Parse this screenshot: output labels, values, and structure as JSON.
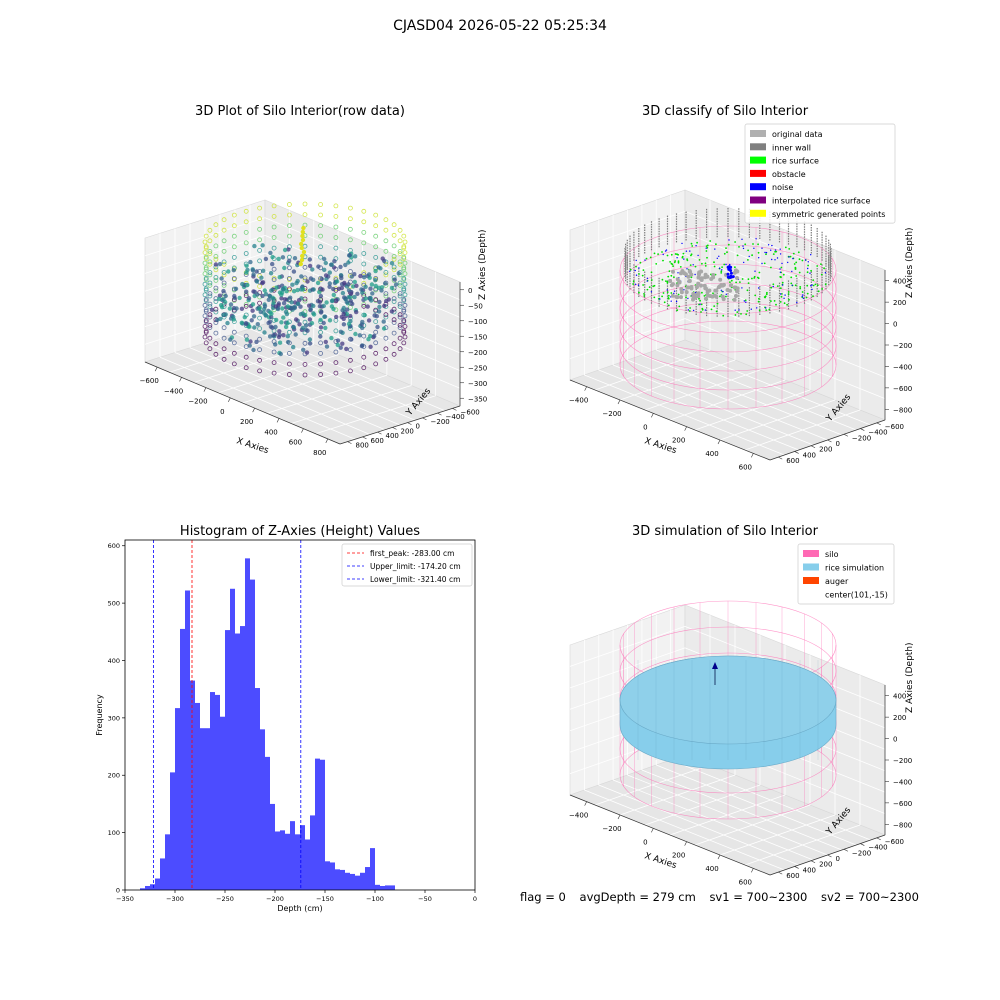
{
  "figure": {
    "suptitle": "CJASD04 2026-05-22 05:25:34",
    "footer": {
      "flag": "flag = 0",
      "avg": "avgDepth = 279 cm",
      "sv1": "sv1 = 700~2300",
      "sv2": "sv2 = 700~2300"
    }
  },
  "panels": {
    "raw": {
      "title": "3D Plot of Silo Interior(row data)",
      "xlabel": "X Axies",
      "ylabel": "Y Axies",
      "zlabel": "Z Axies (Depth)",
      "xticks": [
        "−600",
        "−400",
        "−200",
        "0",
        "200",
        "400",
        "600",
        "800"
      ],
      "yticks": [
        "800",
        "600",
        "400",
        "200",
        "0",
        "−200",
        "−400",
        "−600"
      ],
      "zticks": [
        "0",
        "−50",
        "−100",
        "−150",
        "−200",
        "−250",
        "−300",
        "−350"
      ]
    },
    "classify": {
      "title": "3D classify of Silo Interior",
      "xlabel": "X Axies",
      "ylabel": "Y Axies",
      "zlabel": "Z Axies (Depth)",
      "xticks": [
        "−400",
        "−200",
        "0",
        "200",
        "400",
        "600"
      ],
      "yticks": [
        "600",
        "400",
        "200",
        "0",
        "−200",
        "−400",
        "−600"
      ],
      "zticks": [
        "400",
        "200",
        "0",
        "−200",
        "−400",
        "−600",
        "−800"
      ],
      "legend": [
        {
          "label": "original data",
          "color": "#b0b0b0"
        },
        {
          "label": "inner wall",
          "color": "#808080"
        },
        {
          "label": "rice surface",
          "color": "#00ff00"
        },
        {
          "label": "obstacle",
          "color": "#ff0000"
        },
        {
          "label": "noise",
          "color": "#0000ff"
        },
        {
          "label": "interpolated rice surface",
          "color": "#800080"
        },
        {
          "label": "symmetric generated points",
          "color": "#ffff00"
        }
      ]
    },
    "simulation": {
      "title": "3D simulation of Silo Interior",
      "xlabel": "X Axies",
      "ylabel": "Y Axies",
      "zlabel": "Z Axies (Depth)",
      "xticks": [
        "−400",
        "−200",
        "0",
        "200",
        "400",
        "600"
      ],
      "yticks": [
        "600",
        "400",
        "200",
        "0",
        "−200",
        "−400",
        "−600"
      ],
      "zticks": [
        "400",
        "200",
        "0",
        "−200",
        "−400",
        "−600",
        "−800"
      ],
      "legend": [
        {
          "label": "silo",
          "color": "#ff69b4"
        },
        {
          "label": "rice simulation",
          "color": "#87ceeb"
        },
        {
          "label": "auger",
          "color": "#ff4500"
        },
        {
          "label": "center(101,-15)",
          "color": ""
        }
      ]
    }
  },
  "chart_data": {
    "type": "bar",
    "title": "Histogram of Z-Axies (Height) Values",
    "xlabel": "Depth (cm)",
    "ylabel": "Frequency",
    "xlim": [
      -350,
      0
    ],
    "ylim": [
      0,
      610
    ],
    "bin_width": 5,
    "bar_color": "#4c4cff",
    "xticks": [
      -350,
      -300,
      -250,
      -200,
      -150,
      -100,
      -50,
      0
    ],
    "yticks": [
      0,
      100,
      200,
      300,
      400,
      500,
      600
    ],
    "bins_start": [
      -335,
      -330,
      -325,
      -320,
      -315,
      -310,
      -305,
      -300,
      -295,
      -290,
      -285,
      -280,
      -275,
      -270,
      -265,
      -260,
      -255,
      -250,
      -245,
      -240,
      -235,
      -230,
      -225,
      -220,
      -215,
      -210,
      -205,
      -200,
      -195,
      -190,
      -185,
      -180,
      -175,
      -170,
      -165,
      -160,
      -155,
      -150,
      -145,
      -140,
      -135,
      -130,
      -125,
      -120,
      -115,
      -110,
      -105,
      -100,
      -95,
      -90,
      -85,
      -80,
      -75,
      -70,
      -65,
      -60,
      -55,
      -50,
      -45,
      -40,
      -35,
      -30,
      -25,
      -20
    ],
    "values": [
      3,
      7,
      10,
      20,
      55,
      97,
      205,
      317,
      455,
      522,
      365,
      326,
      282,
      282,
      345,
      340,
      302,
      453,
      525,
      447,
      460,
      578,
      541,
      352,
      280,
      232,
      150,
      102,
      104,
      98,
      120,
      97,
      113,
      88,
      130,
      229,
      227,
      50,
      48,
      36,
      35,
      30,
      28,
      25,
      30,
      40,
      73,
      9,
      7,
      8,
      8,
      0,
      0,
      0,
      0,
      0,
      0,
      0,
      0,
      0,
      0,
      0,
      0,
      0
    ],
    "lines": [
      {
        "label": "first_peak: -283.00 cm",
        "value": -283.0,
        "color": "#ff0000"
      },
      {
        "label": "Upper_limit: -174.20 cm",
        "value": -174.2,
        "color": "#0000ff"
      },
      {
        "label": "Lower_limit: -321.40 cm",
        "value": -321.4,
        "color": "#0000ff"
      }
    ]
  }
}
